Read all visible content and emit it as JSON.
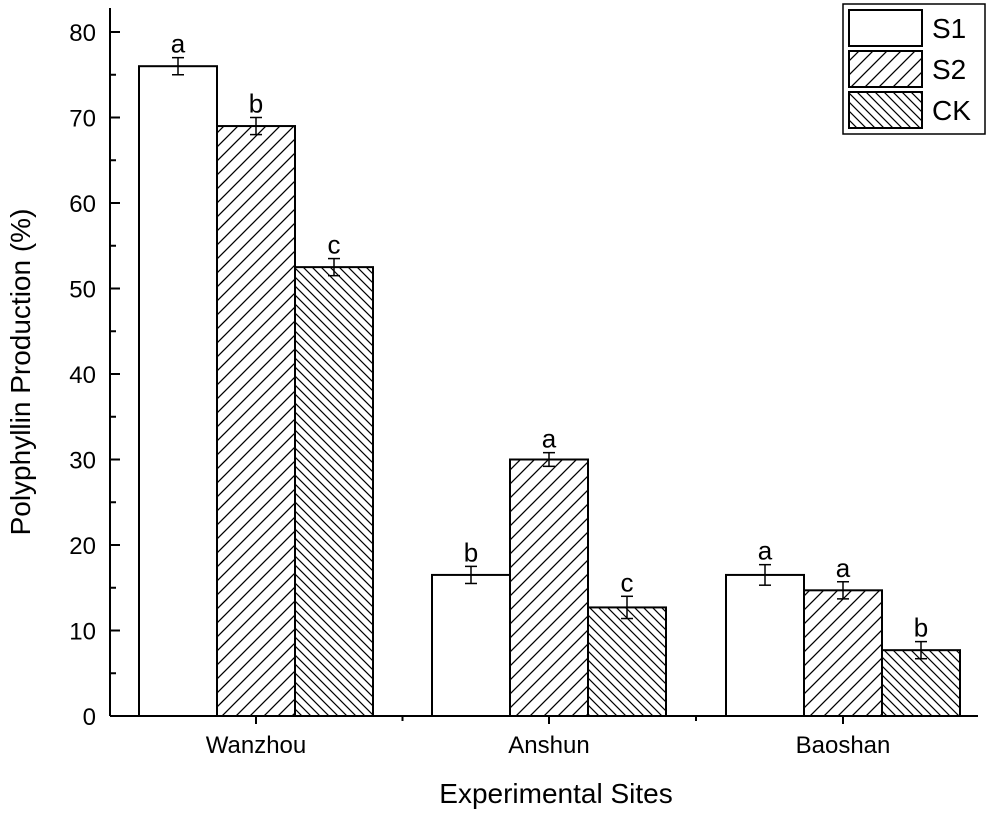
{
  "chart_data": {
    "type": "bar",
    "title": "",
    "xlabel": "Experimental Sites",
    "ylabel": "Polyphyllin Production (%)",
    "ylim": [
      0,
      80
    ],
    "yticks": [
      0,
      10,
      20,
      30,
      40,
      50,
      60,
      70,
      80
    ],
    "categories": [
      "Wanzhou",
      "Anshun",
      "Baoshan"
    ],
    "series": [
      {
        "name": "S1",
        "pattern": "none",
        "values": [
          76.0,
          16.5,
          16.5
        ],
        "errors": [
          1.0,
          1.0,
          1.2
        ],
        "labels": [
          "a",
          "b",
          "a"
        ]
      },
      {
        "name": "S2",
        "pattern": "forward-hatch",
        "values": [
          69.0,
          30.0,
          14.7
        ],
        "errors": [
          1.0,
          0.8,
          1.0
        ],
        "labels": [
          "b",
          "a",
          "a"
        ]
      },
      {
        "name": "CK",
        "pattern": "back-hatch",
        "values": [
          52.5,
          12.7,
          7.7
        ],
        "errors": [
          1.0,
          1.3,
          1.0
        ],
        "labels": [
          "c",
          "c",
          "b"
        ]
      }
    ],
    "legend_position": "top-right",
    "grid": false,
    "colors": {
      "bar_fill": "#ffffff",
      "stroke": "#000000"
    }
  }
}
